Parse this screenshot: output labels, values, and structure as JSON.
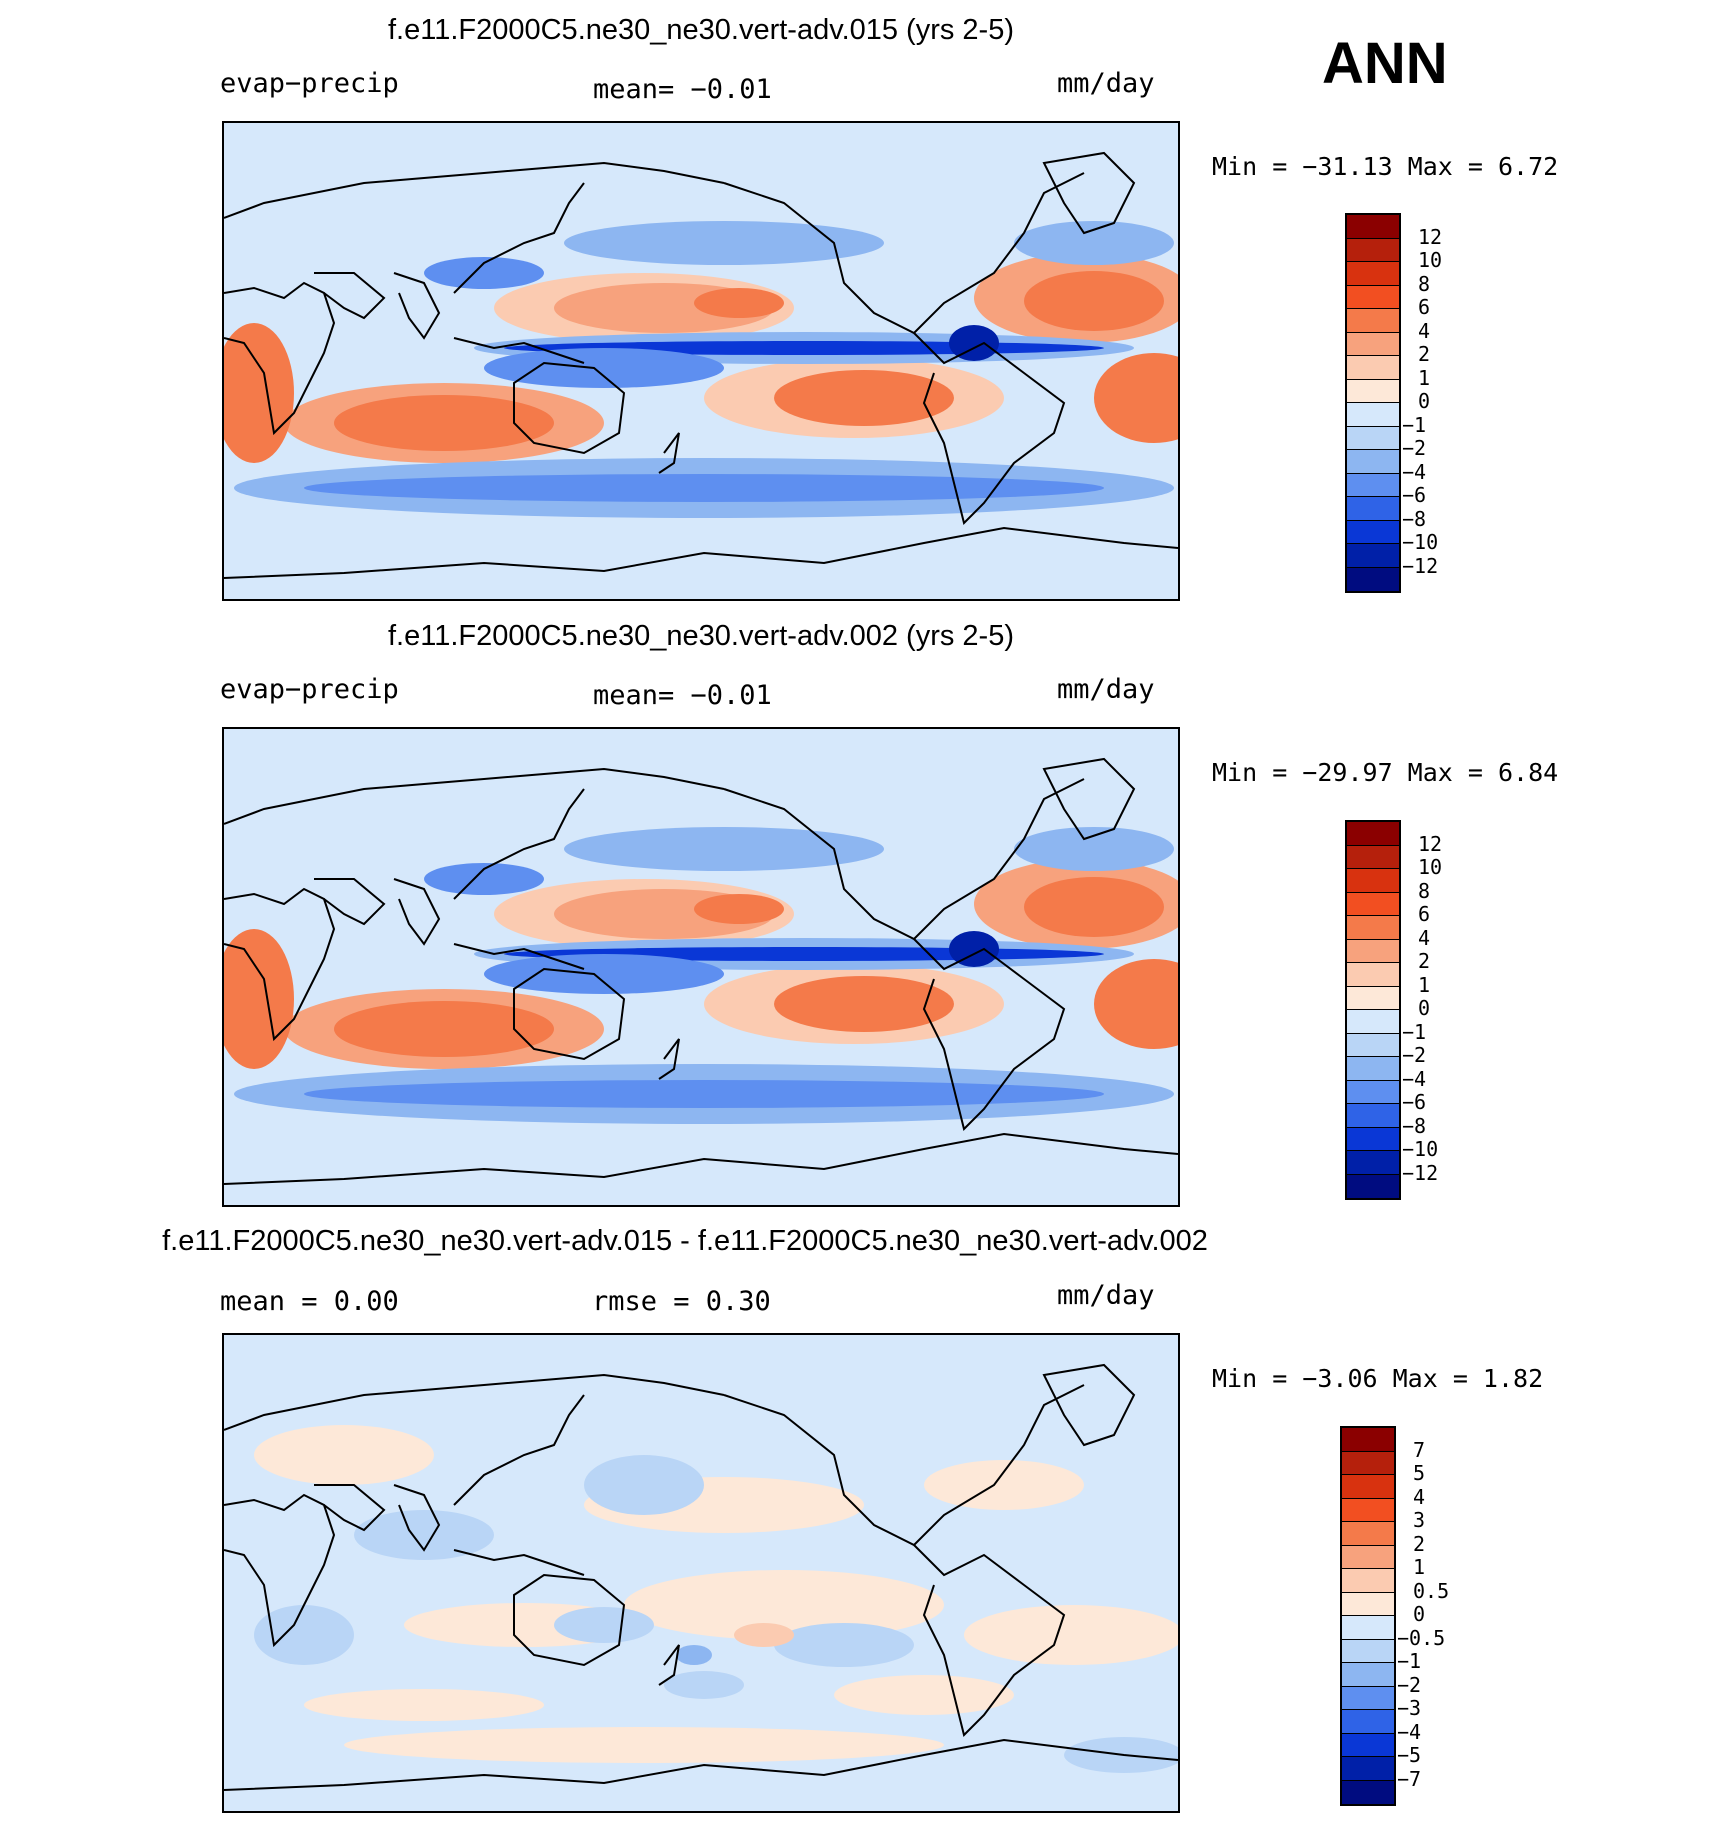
{
  "season": "ANN",
  "panels": [
    {
      "title": "f.e11.F2000C5.ne30_ne30.vert-adv.015 (yrs 2-5)",
      "left_label": "evap−precip",
      "mid_label": "mean=   −0.01",
      "right_label": "mm/day",
      "stats": "Min  =  −31.13  Max  =      6.72",
      "kind": "field"
    },
    {
      "title": "f.e11.F2000C5.ne30_ne30.vert-adv.002 (yrs 2-5)",
      "left_label": "evap−precip",
      "mid_label": "mean=   −0.01",
      "right_label": "mm/day",
      "stats": "Min  =  −29.97  Max  =      6.84",
      "kind": "field"
    },
    {
      "title": "f.e11.F2000C5.ne30_ne30.vert-adv.015 - f.e11.F2000C5.ne30_ne30.vert-adv.002",
      "left_label": "mean  =      0.00",
      "mid_label": "rmse  =      0.30",
      "right_label": "mm/day",
      "stats": "Min  =     −3.06  Max  =      1.82",
      "kind": "diff"
    }
  ],
  "chart_data": [
    {
      "type": "heatmap",
      "title": "f.e11.F2000C5.ne30_ne30.vert-adv.015 (yrs 2-5)",
      "variable": "evap−precip",
      "units": "mm/day",
      "mean": -0.01,
      "min": -31.13,
      "max": 6.72,
      "levels": [
        "12",
        "10",
        "8",
        "6",
        "4",
        "2",
        "1",
        "0",
        "−1",
        "−2",
        "−4",
        "−6",
        "−8",
        "−10",
        "−12"
      ]
    },
    {
      "type": "heatmap",
      "title": "f.e11.F2000C5.ne30_ne30.vert-adv.002 (yrs 2-5)",
      "variable": "evap−precip",
      "units": "mm/day",
      "mean": -0.01,
      "min": -29.97,
      "max": 6.84,
      "levels": [
        "12",
        "10",
        "8",
        "6",
        "4",
        "2",
        "1",
        "0",
        "−1",
        "−2",
        "−4",
        "−6",
        "−8",
        "−10",
        "−12"
      ]
    },
    {
      "type": "heatmap",
      "title": "f.e11.F2000C5.ne30_ne30.vert-adv.015 - f.e11.F2000C5.ne30_ne30.vert-adv.002",
      "units": "mm/day",
      "mean": 0.0,
      "rmse": 0.3,
      "min": -3.06,
      "max": 1.82,
      "levels": [
        "7",
        "5",
        "4",
        "3",
        "2",
        "1",
        "0.5",
        "0",
        "−0.5",
        "−1",
        "−2",
        "−3",
        "−4",
        "−5",
        "−7"
      ]
    }
  ],
  "colors": {
    "scale": [
      "#8b0000",
      "#b5200c",
      "#d8320f",
      "#f24f21",
      "#f47a4a",
      "#f7a27d",
      "#fbcbb1",
      "#fde8d8",
      "#d6e8fb",
      "#b9d5f6",
      "#8db6f1",
      "#5e8ff0",
      "#2f63e7",
      "#0a37d6",
      "#0020a8",
      "#000c80"
    ],
    "land": "#d6e8fb",
    "coast": "#000000"
  }
}
